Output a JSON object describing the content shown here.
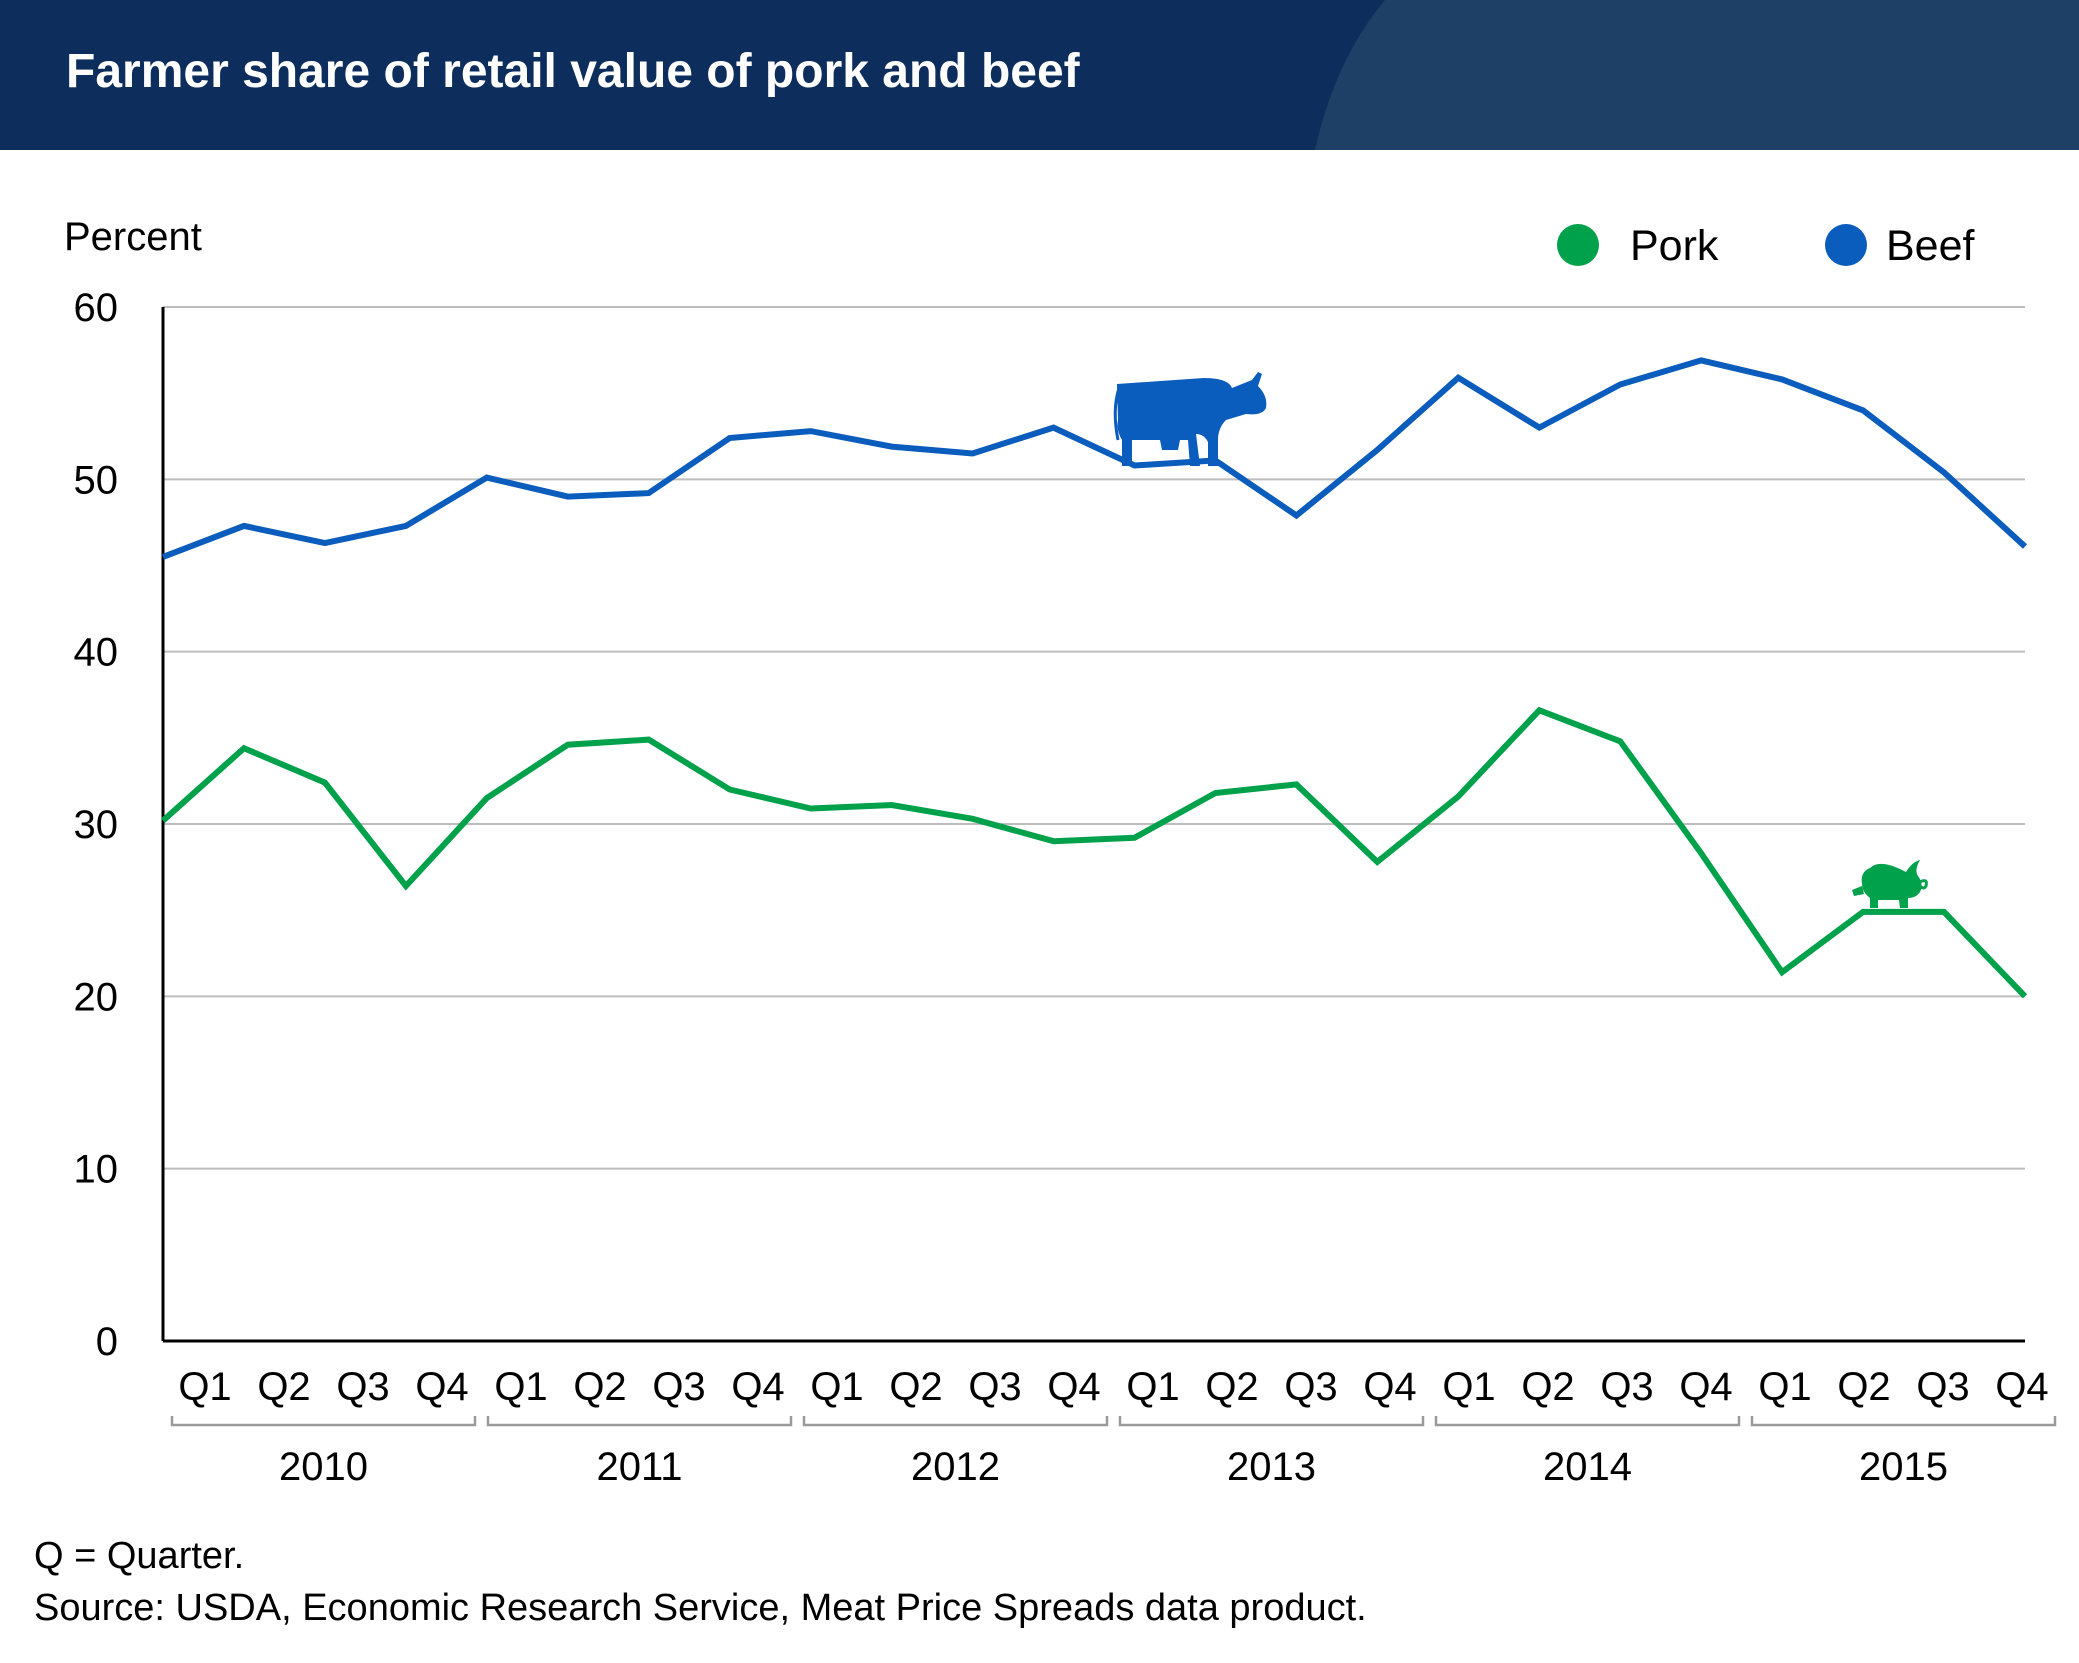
{
  "title": "Farmer share of retail value of pork and beef",
  "colors": {
    "banner": "#0d2d5c",
    "banner_accent": "#1e4066",
    "pork": "#00a14b",
    "beef": "#0a5cbd",
    "grid": "#bdbdbd"
  },
  "footnote": {
    "note": "Q = Quarter.",
    "source": "Source: USDA, Economic Research Service, Meat Price Spreads data product."
  },
  "chart_data": {
    "type": "line",
    "title": "Farmer share of retail value of pork and beef",
    "ylabel": "Percent",
    "xlabel": "",
    "ylim": [
      0,
      60
    ],
    "yticks": [
      0,
      10,
      20,
      30,
      40,
      50,
      60
    ],
    "grid": true,
    "legend_position": "top-right",
    "quarters": [
      "Q1",
      "Q2",
      "Q3",
      "Q4"
    ],
    "years": [
      "2010",
      "2011",
      "2012",
      "2013",
      "2014",
      "2015"
    ],
    "x": [
      "2010 Q1",
      "2010 Q2",
      "2010 Q3",
      "2010 Q4",
      "2011 Q1",
      "2011 Q2",
      "2011 Q3",
      "2011 Q4",
      "2012 Q1",
      "2012 Q2",
      "2012 Q3",
      "2012 Q4",
      "2013 Q1",
      "2013 Q2",
      "2013 Q3",
      "2013 Q4",
      "2014 Q1",
      "2014 Q2",
      "2014 Q3",
      "2014 Q4",
      "2015 Q1",
      "2015 Q2",
      "2015 Q3",
      "2015 Q4"
    ],
    "series": [
      {
        "name": "Pork",
        "color": "#00a14b",
        "icon": "pig-icon",
        "values": [
          30.2,
          34.4,
          32.4,
          26.4,
          31.5,
          34.6,
          34.9,
          32.0,
          30.9,
          31.1,
          30.3,
          29.0,
          29.2,
          31.8,
          32.3,
          27.8,
          31.6,
          36.6,
          34.8,
          28.3,
          21.4,
          24.9,
          24.9,
          20.0
        ]
      },
      {
        "name": "Beef",
        "color": "#0a5cbd",
        "icon": "cow-icon",
        "values": [
          45.5,
          47.3,
          46.3,
          47.3,
          50.1,
          49.0,
          49.2,
          52.4,
          52.8,
          51.9,
          51.5,
          53.0,
          50.8,
          51.1,
          47.9,
          51.7,
          55.9,
          53.0,
          55.5,
          56.9,
          55.8,
          54.0,
          50.4,
          46.1
        ]
      }
    ]
  }
}
